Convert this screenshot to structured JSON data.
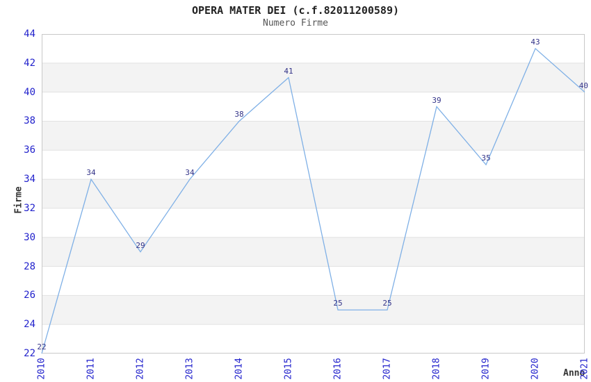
{
  "title": "OPERA MATER DEI (c.f.82011200589)",
  "subtitle": "Numero Firme",
  "chart_data": {
    "type": "line",
    "title": "OPERA MATER DEI (c.f.82011200589)",
    "subtitle": "Numero Firme",
    "xlabel": "Anno",
    "ylabel": "Firme",
    "categories": [
      "2010",
      "2011",
      "2012",
      "2013",
      "2014",
      "2015",
      "2016",
      "2017",
      "2018",
      "2019",
      "2020",
      "2021"
    ],
    "values": [
      22,
      34,
      29,
      34,
      38,
      41,
      25,
      25,
      39,
      35,
      43,
      40
    ],
    "ylim": [
      22,
      44
    ],
    "ytick_step": 2,
    "grid": "horizontal-bands-alternating",
    "legend": "none",
    "colors": {
      "line": "#7FB0E6",
      "tick_label": "#2222CC",
      "point_label": "#333388",
      "band_fill": "#F3F3F3",
      "gridline": "#E2E2E2",
      "plot_border": "#C8C8C8",
      "title": "#222222",
      "subtitle": "#555555",
      "axis_title": "#333333",
      "background": "#FFFFFF"
    }
  }
}
